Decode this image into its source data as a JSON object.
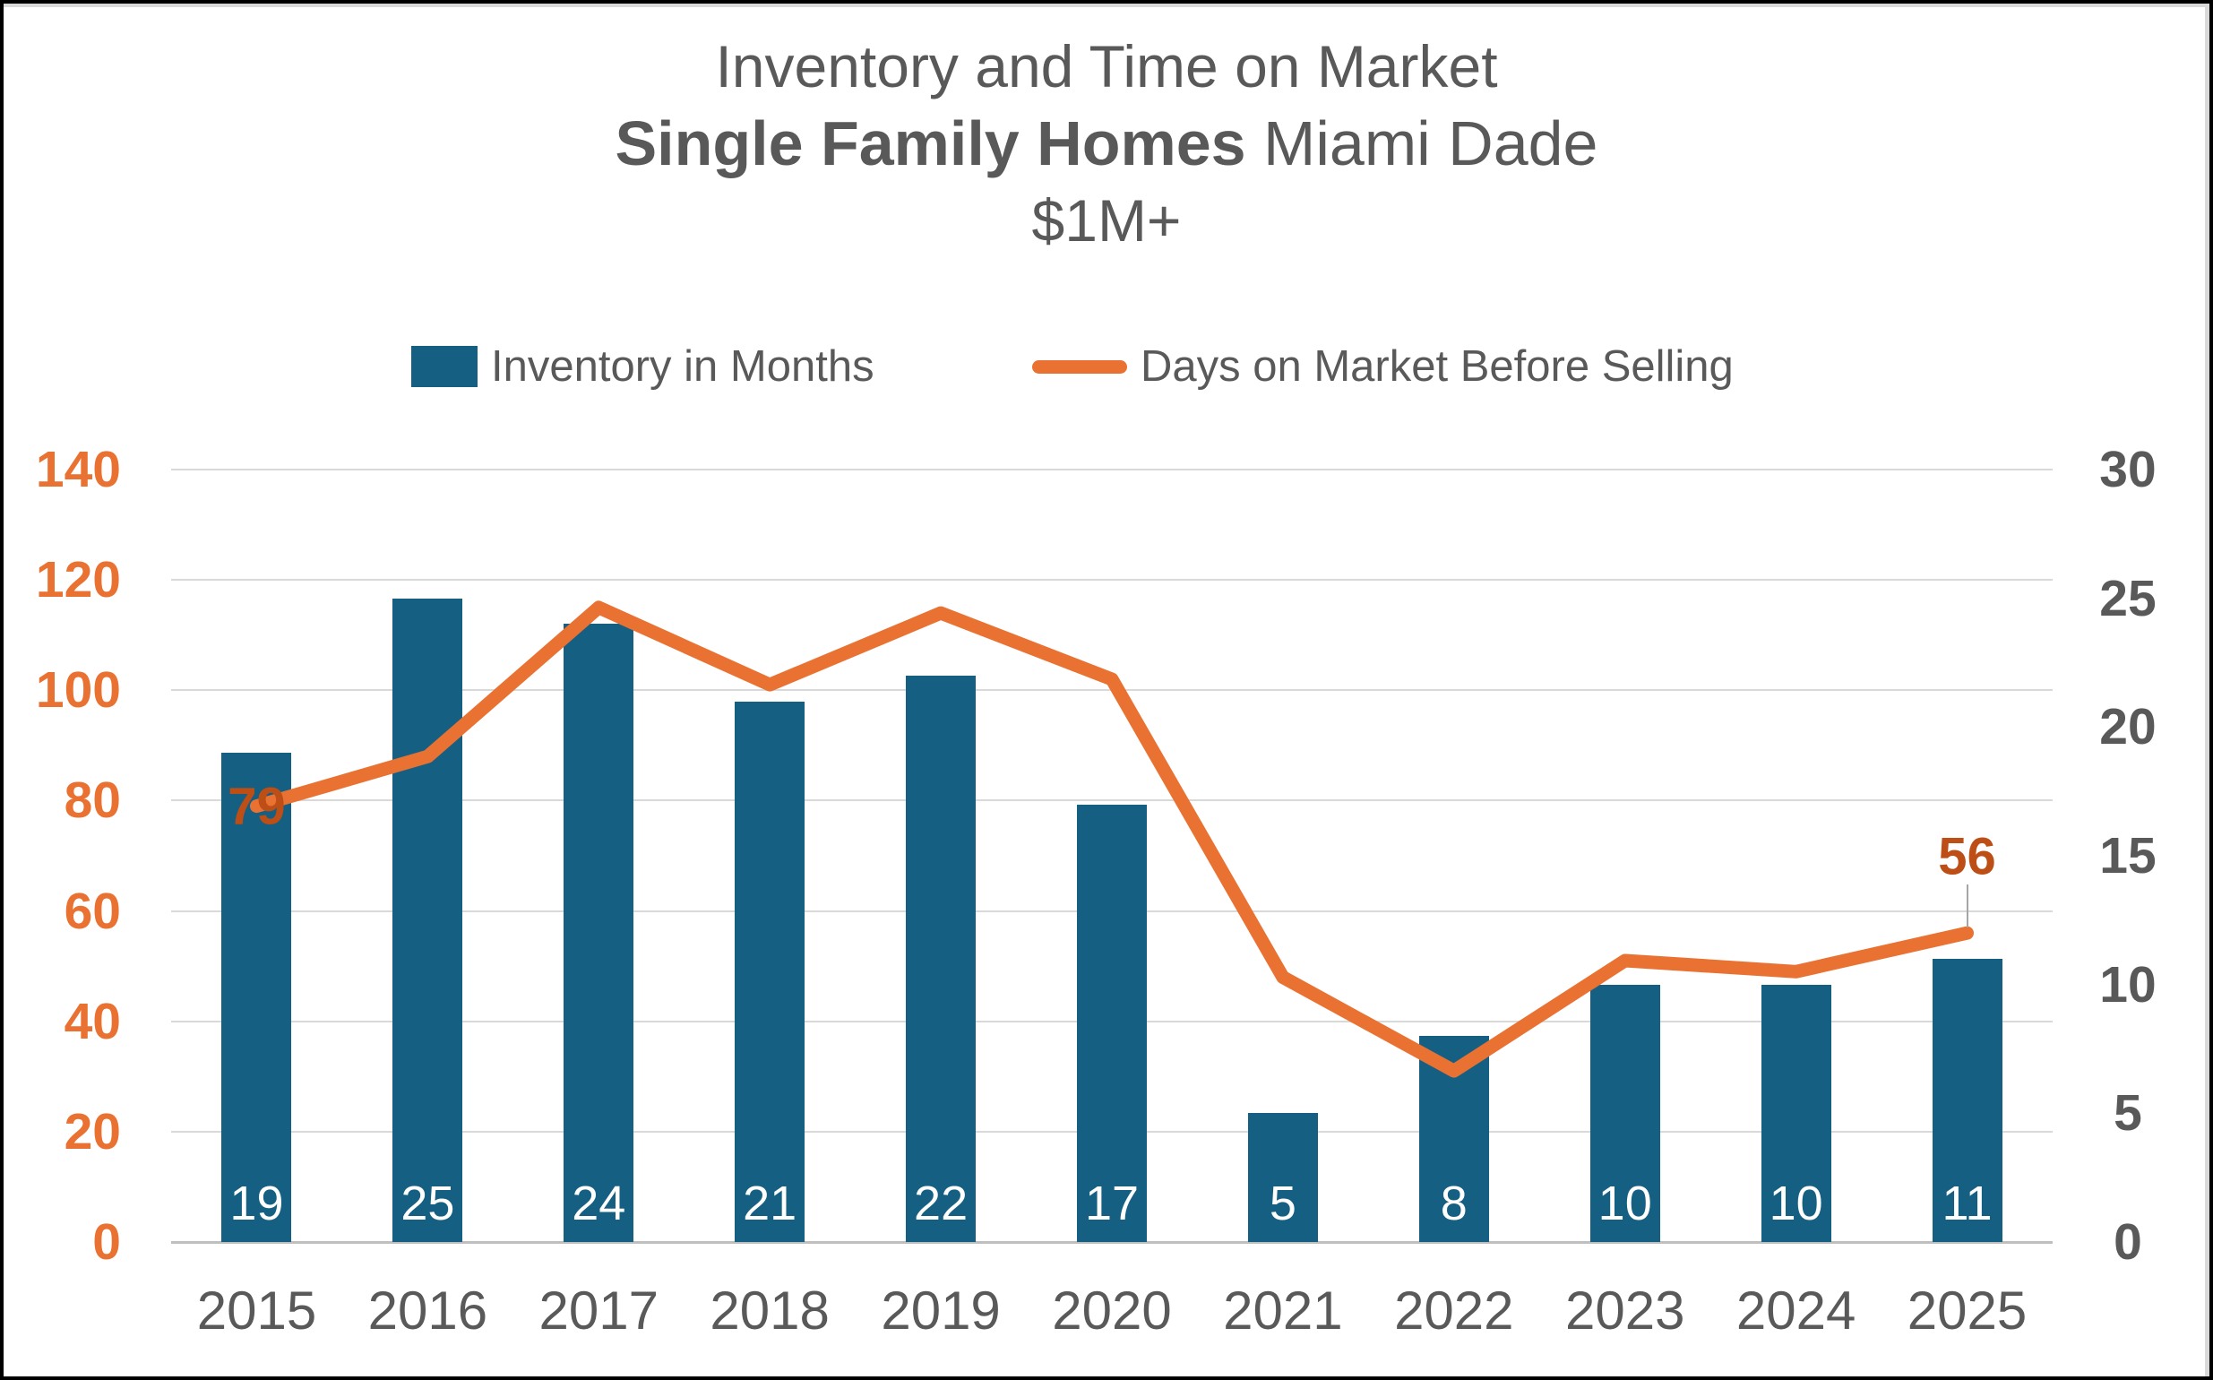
{
  "title": {
    "line1": "Inventory and Time on Market",
    "line2_bold": "Single Family Homes",
    "line2_rest": " Miami Dade",
    "line3": "$1M+"
  },
  "legend": {
    "items": [
      {
        "label": "Inventory in Months",
        "marker": "bar-swatch"
      },
      {
        "label": "Days on Market Before Selling",
        "marker": "line-swatch"
      }
    ]
  },
  "chart_data": {
    "type": "combo",
    "title": "Inventory and Time on Market Single Family Homes Miami Dade $1M+",
    "categories": [
      "2015",
      "2016",
      "2017",
      "2018",
      "2019",
      "2020",
      "2021",
      "2022",
      "2023",
      "2024",
      "2025"
    ],
    "series": [
      {
        "name": "Inventory in Months",
        "type": "bar",
        "axis": "right",
        "color": "#156082",
        "values": [
          19,
          25,
          24,
          21,
          22,
          17,
          5,
          8,
          10,
          10,
          11
        ],
        "data_label_position": "inside-base",
        "data_label_color": "#ffffff"
      },
      {
        "name": "Days on Market Before Selling",
        "type": "line",
        "axis": "left",
        "color": "#E97132",
        "values": [
          79,
          88,
          115,
          101,
          114,
          102,
          48,
          31,
          51,
          49,
          56
        ],
        "point_labels": [
          {
            "index": 0,
            "text": "79",
            "placement": "center"
          },
          {
            "index": 10,
            "text": "56",
            "placement": "above",
            "leader": true
          }
        ],
        "point_label_color": "#BC4E16"
      }
    ],
    "axes": {
      "left": {
        "min": 0,
        "max": 140,
        "step": 20,
        "ticks": [
          0,
          20,
          40,
          60,
          80,
          100,
          120,
          140
        ],
        "color": "#E97132"
      },
      "right": {
        "min": 0,
        "max": 30,
        "step": 5,
        "ticks": [
          0,
          5,
          10,
          15,
          20,
          25,
          30
        ],
        "color": "#595959"
      }
    },
    "grid": true,
    "gridline_color": "#D9D9D9",
    "axis_line_color": "#BFBFBF",
    "leader_line_color": "#A6A6A6",
    "legend_position": "top"
  }
}
